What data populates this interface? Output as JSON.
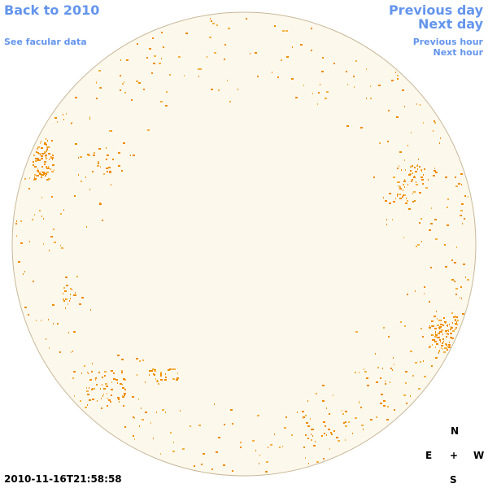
{
  "nav": {
    "back": "Back to 2010",
    "facular": "See facular data",
    "previous_day": "Previous day",
    "next_day": "Next day",
    "previous_hour": "Previous hour",
    "next_hour": "Next hour"
  },
  "timestamp": "2010-11-16T21:58:58",
  "compass": {
    "north": "N",
    "east": "E",
    "center": "+",
    "west": "W",
    "south": "S"
  }
}
